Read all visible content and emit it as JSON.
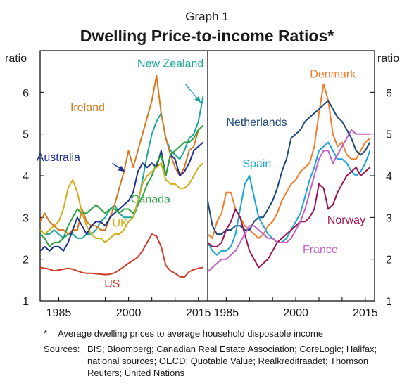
{
  "header": {
    "graph_label": "Graph 1",
    "title": "Dwelling Price-to-income Ratios*"
  },
  "footnote": {
    "marker": "*",
    "text": "Average dwelling prices to average household disposable income"
  },
  "sources": {
    "label": "Sources:",
    "text": "BIS; Bloomberg; Canadian Real Estate Association; CoreLogic; Halifax; national sources; OECD; Quotable Value; Realkreditraadet; Thomson Reuters; United Nations"
  },
  "chart_data": [
    {
      "type": "line",
      "panel": "left",
      "ylabel": "ratio",
      "ylim": [
        1,
        7
      ],
      "yticks": [
        1,
        2,
        3,
        4,
        5,
        6
      ],
      "xlim": [
        1981,
        2017
      ],
      "xticks": [
        1985,
        2000,
        2015
      ],
      "grid": false,
      "series": [
        {
          "name": "New Zealand",
          "color": "#1aa79c",
          "x": [
            1981,
            1982,
            1983,
            1984,
            1985,
            1986,
            1987,
            1988,
            1989,
            1990,
            1991,
            1992,
            1993,
            1994,
            1995,
            1996,
            1997,
            1998,
            1999,
            2000,
            2001,
            2002,
            2003,
            2004,
            2005,
            2006,
            2007,
            2008,
            2009,
            2010,
            2011,
            2012,
            2013,
            2014,
            2015,
            2016
          ],
          "y": [
            2.7,
            2.6,
            2.6,
            2.7,
            2.6,
            2.5,
            2.6,
            2.6,
            2.5,
            2.5,
            2.6,
            2.6,
            2.7,
            2.9,
            3.0,
            3.2,
            3.3,
            3.1,
            3.0,
            3.0,
            3.0,
            3.3,
            3.9,
            4.5,
            5.0,
            5.3,
            5.5,
            4.9,
            4.6,
            4.5,
            4.4,
            4.6,
            4.9,
            5.0,
            5.3,
            5.9
          ]
        },
        {
          "name": "Ireland",
          "color": "#d6791f",
          "x": [
            1981,
            1982,
            1983,
            1984,
            1985,
            1986,
            1987,
            1988,
            1989,
            1990,
            1991,
            1992,
            1993,
            1994,
            1995,
            1996,
            1997,
            1998,
            1999,
            2000,
            2001,
            2002,
            2003,
            2004,
            2005,
            2006,
            2007,
            2008,
            2009,
            2010,
            2011,
            2012,
            2013,
            2014,
            2015,
            2016
          ],
          "y": [
            2.9,
            3.1,
            2.9,
            2.8,
            2.7,
            2.7,
            2.6,
            2.7,
            2.7,
            3.2,
            2.9,
            2.8,
            2.8,
            2.7,
            2.7,
            3.0,
            3.3,
            3.7,
            4.1,
            4.6,
            4.2,
            4.6,
            5.0,
            5.4,
            5.8,
            6.4,
            5.5,
            4.9,
            4.5,
            4.2,
            4.0,
            4.2,
            4.6,
            4.7,
            5.1,
            5.2
          ]
        },
        {
          "name": "Australia",
          "color": "#1c2e8e",
          "x": [
            1981,
            1982,
            1983,
            1984,
            1985,
            1986,
            1987,
            1988,
            1989,
            1990,
            1991,
            1992,
            1993,
            1994,
            1995,
            1996,
            1997,
            1998,
            1999,
            2000,
            2001,
            2002,
            2003,
            2004,
            2005,
            2006,
            2007,
            2008,
            2009,
            2010,
            2011,
            2012,
            2013,
            2014,
            2015,
            2016
          ],
          "y": [
            2.2,
            2.3,
            2.2,
            2.3,
            2.3,
            2.2,
            2.4,
            2.7,
            3.0,
            2.8,
            2.6,
            2.8,
            2.9,
            2.9,
            2.8,
            3.0,
            3.1,
            3.2,
            3.3,
            3.4,
            3.6,
            4.1,
            4.3,
            4.2,
            4.3,
            4.2,
            4.6,
            4.0,
            4.5,
            4.4,
            4.0,
            4.1,
            4.3,
            4.6,
            4.7,
            4.8
          ]
        },
        {
          "name": "Canada",
          "color": "#2aa23f",
          "x": [
            1981,
            1982,
            1983,
            1984,
            1985,
            1986,
            1987,
            1988,
            1989,
            1990,
            1991,
            1992,
            1993,
            1994,
            1995,
            1996,
            1997,
            1998,
            1999,
            2000,
            2001,
            2002,
            2003,
            2004,
            2005,
            2006,
            2007,
            2008,
            2009,
            2010,
            2011,
            2012,
            2013,
            2014,
            2015,
            2016
          ],
          "y": [
            2.6,
            2.5,
            2.3,
            2.4,
            2.4,
            2.5,
            2.8,
            3.0,
            3.2,
            3.1,
            3.1,
            3.2,
            3.3,
            3.2,
            3.1,
            3.2,
            3.2,
            3.1,
            3.2,
            3.2,
            3.1,
            3.3,
            3.5,
            3.8,
            4.0,
            4.3,
            4.5,
            4.0,
            4.5,
            4.6,
            4.7,
            4.8,
            4.8,
            4.9,
            5.1,
            5.2
          ]
        },
        {
          "name": "UK",
          "color": "#d2ae19",
          "x": [
            1981,
            1982,
            1983,
            1984,
            1985,
            1986,
            1987,
            1988,
            1989,
            1990,
            1991,
            1992,
            1993,
            1994,
            1995,
            1996,
            1997,
            1998,
            1999,
            2000,
            2001,
            2002,
            2003,
            2004,
            2005,
            2006,
            2007,
            2008,
            2009,
            2010,
            2011,
            2012,
            2013,
            2014,
            2015,
            2016
          ],
          "y": [
            2.7,
            2.6,
            2.7,
            2.8,
            2.9,
            3.2,
            3.7,
            3.9,
            3.6,
            3.1,
            2.8,
            2.6,
            2.5,
            2.5,
            2.4,
            2.5,
            2.6,
            2.6,
            2.7,
            2.9,
            3.0,
            3.4,
            3.8,
            4.0,
            4.1,
            4.2,
            4.3,
            3.9,
            3.8,
            3.8,
            3.7,
            3.7,
            3.8,
            4.0,
            4.2,
            4.3
          ]
        },
        {
          "name": "US",
          "color": "#d23a2a",
          "x": [
            1981,
            1982,
            1983,
            1984,
            1985,
            1986,
            1987,
            1988,
            1989,
            1990,
            1991,
            1992,
            1993,
            1994,
            1995,
            1996,
            1997,
            1998,
            1999,
            2000,
            2001,
            2002,
            2003,
            2004,
            2005,
            2006,
            2007,
            2008,
            2009,
            2010,
            2011,
            2012,
            2013,
            2014,
            2015,
            2016
          ],
          "y": [
            1.8,
            1.78,
            1.76,
            1.72,
            1.74,
            1.76,
            1.78,
            1.76,
            1.72,
            1.68,
            1.66,
            1.66,
            1.65,
            1.64,
            1.63,
            1.64,
            1.67,
            1.74,
            1.82,
            1.9,
            1.97,
            2.05,
            2.2,
            2.4,
            2.6,
            2.55,
            2.3,
            1.85,
            1.72,
            1.66,
            1.58,
            1.57,
            1.7,
            1.75,
            1.78,
            1.8
          ]
        }
      ]
    },
    {
      "type": "line",
      "panel": "right",
      "ylabel": "ratio",
      "ylim": [
        1,
        7
      ],
      "yticks": [
        1,
        2,
        3,
        4,
        5,
        6
      ],
      "xlim": [
        1981,
        2017
      ],
      "xticks": [
        1985,
        2000,
        2015
      ],
      "grid": false,
      "series": [
        {
          "name": "Denmark",
          "color": "#f07c2d",
          "x": [
            1981,
            1982,
            1983,
            1984,
            1985,
            1986,
            1987,
            1988,
            1989,
            1990,
            1991,
            1992,
            1993,
            1994,
            1995,
            1996,
            1997,
            1998,
            1999,
            2000,
            2001,
            2002,
            2003,
            2004,
            2005,
            2006,
            2007,
            2008,
            2009,
            2010,
            2011,
            2012,
            2013,
            2014,
            2015,
            2016
          ],
          "y": [
            2.6,
            2.5,
            2.9,
            3.1,
            3.6,
            3.6,
            3.2,
            3.0,
            2.8,
            2.7,
            2.6,
            2.5,
            2.6,
            2.8,
            2.9,
            3.1,
            3.4,
            3.6,
            3.8,
            3.9,
            4.1,
            4.2,
            4.3,
            4.7,
            5.5,
            6.2,
            5.8,
            5.0,
            4.7,
            4.8,
            4.5,
            4.4,
            4.4,
            4.6,
            4.8,
            4.9
          ]
        },
        {
          "name": "Netherlands",
          "color": "#1d4a7a",
          "x": [
            1981,
            1982,
            1983,
            1984,
            1985,
            1986,
            1987,
            1988,
            1989,
            1990,
            1991,
            1992,
            1993,
            1994,
            1995,
            1996,
            1997,
            1998,
            1999,
            2000,
            2001,
            2002,
            2003,
            2004,
            2005,
            2006,
            2007,
            2008,
            2009,
            2010,
            2011,
            2012,
            2013,
            2014,
            2015,
            2016
          ],
          "y": [
            3.4,
            2.8,
            2.6,
            2.6,
            2.7,
            2.7,
            2.8,
            2.8,
            2.7,
            2.7,
            2.9,
            3.0,
            3.0,
            3.2,
            3.4,
            3.7,
            4.1,
            4.4,
            4.9,
            5.0,
            5.1,
            5.3,
            5.4,
            5.5,
            5.6,
            5.7,
            5.8,
            5.6,
            5.4,
            5.3,
            5.1,
            4.9,
            4.6,
            4.5,
            4.6,
            4.8
          ]
        },
        {
          "name": "Spain",
          "color": "#1aa6d4",
          "x": [
            1981,
            1982,
            1983,
            1984,
            1985,
            1986,
            1987,
            1988,
            1989,
            1990,
            1991,
            1992,
            1993,
            1994,
            1995,
            1996,
            1997,
            1998,
            1999,
            2000,
            2001,
            2002,
            2003,
            2004,
            2005,
            2006,
            2007,
            2008,
            2009,
            2010,
            2011,
            2012,
            2013,
            2014,
            2015,
            2016
          ],
          "y": [
            2.4,
            2.2,
            2.1,
            2.2,
            2.2,
            2.3,
            2.6,
            3.2,
            3.8,
            4.0,
            3.5,
            3.0,
            2.8,
            2.6,
            2.5,
            2.4,
            2.4,
            2.5,
            2.7,
            2.9,
            3.1,
            3.5,
            3.9,
            4.2,
            4.6,
            4.7,
            4.8,
            4.6,
            4.4,
            4.4,
            4.3,
            4.1,
            4.0,
            4.1,
            4.3,
            4.6
          ]
        },
        {
          "name": "Norway",
          "color": "#a0124f",
          "x": [
            1981,
            1982,
            1983,
            1984,
            1985,
            1986,
            1987,
            1988,
            1989,
            1990,
            1991,
            1992,
            1993,
            1994,
            1995,
            1996,
            1997,
            1998,
            1999,
            2000,
            2001,
            2002,
            2003,
            2004,
            2005,
            2006,
            2007,
            2008,
            2009,
            2010,
            2011,
            2012,
            2013,
            2014,
            2015,
            2016
          ],
          "y": [
            2.4,
            2.3,
            2.3,
            2.4,
            2.7,
            2.9,
            3.2,
            3.0,
            2.6,
            2.2,
            2.0,
            1.8,
            1.9,
            2.0,
            2.2,
            2.4,
            2.5,
            2.6,
            2.7,
            2.8,
            2.9,
            2.9,
            3.0,
            3.2,
            3.8,
            3.7,
            3.2,
            3.3,
            3.6,
            3.8,
            4.0,
            4.1,
            4.2,
            4.0,
            4.1,
            4.2
          ]
        },
        {
          "name": "France",
          "color": "#c25fc9",
          "x": [
            1981,
            1982,
            1983,
            1984,
            1985,
            1986,
            1987,
            1988,
            1989,
            1990,
            1991,
            1992,
            1993,
            1994,
            1995,
            1996,
            1997,
            1998,
            1999,
            2000,
            2001,
            2002,
            2003,
            2004,
            2005,
            2006,
            2007,
            2008,
            2009,
            2010,
            2011,
            2012,
            2013,
            2014,
            2015,
            2016
          ],
          "y": [
            1.7,
            1.8,
            1.9,
            2.0,
            2.0,
            2.1,
            2.2,
            2.4,
            2.6,
            2.8,
            2.8,
            2.7,
            2.6,
            2.5,
            2.5,
            2.4,
            2.4,
            2.4,
            2.5,
            2.7,
            2.9,
            3.2,
            3.6,
            4.0,
            4.4,
            4.6,
            4.6,
            4.3,
            4.5,
            4.7,
            4.9,
            5.1,
            5.0,
            5.0,
            5.0,
            5.0
          ]
        }
      ]
    }
  ]
}
